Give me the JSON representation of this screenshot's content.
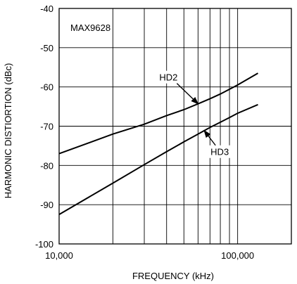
{
  "chart_data": {
    "type": "line",
    "title": "MAX9628",
    "xlabel": "FREQUENCY (kHz)",
    "ylabel": "HARMONIC DISTIORTION (dBc)",
    "x_scale": "log",
    "xlim": [
      10000,
      200000
    ],
    "ylim": [
      -100,
      -40
    ],
    "x_ticks": [
      10000,
      100000
    ],
    "x_tick_labels": [
      "10,000",
      "100,000"
    ],
    "y_ticks": [
      -100,
      -90,
      -80,
      -70,
      -60,
      -50,
      -40
    ],
    "y_tick_labels": [
      "-100",
      "-90",
      "-80",
      "-70",
      "-60",
      "-50",
      "-40"
    ],
    "grid": true,
    "legend": "none",
    "figure_id": "MAX9628 toc07",
    "series": [
      {
        "name": "HD2",
        "x": [
          10000,
          20000,
          30000,
          40000,
          50000,
          60000,
          70000,
          80000,
          90000,
          100000,
          130000
        ],
        "y": [
          -77,
          -72,
          -69.5,
          -67.3,
          -65.8,
          -64.3,
          -63.0,
          -61.8,
          -60.6,
          -59.5,
          -56.5
        ]
      },
      {
        "name": "HD3",
        "x": [
          10000,
          20000,
          30000,
          40000,
          50000,
          60000,
          70000,
          80000,
          90000,
          100000,
          130000
        ],
        "y": [
          -92.5,
          -84.5,
          -79.8,
          -76.5,
          -74.0,
          -72.0,
          -70.3,
          -69.0,
          -67.8,
          -66.7,
          -64.5
        ]
      }
    ],
    "annotations": [
      {
        "text": "HD2",
        "series": "HD2",
        "x": 60000
      },
      {
        "text": "HD3",
        "series": "HD3",
        "x": 65000
      }
    ]
  }
}
